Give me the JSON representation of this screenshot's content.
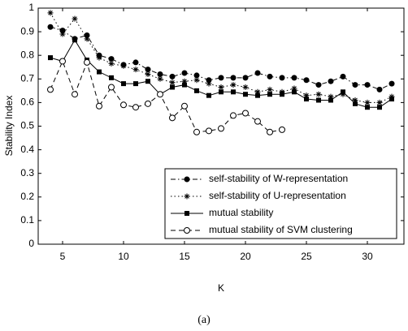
{
  "chart_data": {
    "type": "line",
    "x_label": "K",
    "y_label": "Stability Index",
    "caption": "(a)",
    "x": [
      4,
      5,
      6,
      7,
      8,
      9,
      10,
      11,
      12,
      13,
      14,
      15,
      16,
      17,
      18,
      19,
      20,
      21,
      22,
      23,
      24,
      25,
      26,
      27,
      28,
      29,
      30,
      31,
      32
    ],
    "series": [
      {
        "name": "self-stability of W-representation",
        "color": "#000000",
        "line_style": "dashdot",
        "marker": "filled-circle",
        "values": [
          0.92,
          0.905,
          0.87,
          0.885,
          0.8,
          0.785,
          0.76,
          0.77,
          0.74,
          0.72,
          0.71,
          0.725,
          0.715,
          0.695,
          0.705,
          0.705,
          0.705,
          0.725,
          0.71,
          0.705,
          0.705,
          0.695,
          0.675,
          0.69,
          0.71,
          0.675,
          0.675,
          0.655,
          0.68
        ]
      },
      {
        "name": "self-stability of U-representation",
        "color": "#000000",
        "line_style": "dotted",
        "marker": "star",
        "values": [
          0.98,
          0.89,
          0.955,
          0.87,
          0.79,
          0.765,
          0.755,
          0.74,
          0.72,
          0.7,
          0.685,
          0.69,
          0.695,
          0.68,
          0.665,
          0.675,
          0.665,
          0.645,
          0.655,
          0.645,
          0.66,
          0.63,
          0.635,
          0.625,
          0.635,
          0.61,
          0.6,
          0.6,
          0.625
        ]
      },
      {
        "name": "mutual stability",
        "color": "#000000",
        "line_style": "solid",
        "marker": "filled-square",
        "values": [
          0.79,
          0.775,
          0.865,
          0.78,
          0.73,
          0.705,
          0.68,
          0.68,
          0.69,
          0.635,
          0.665,
          0.675,
          0.65,
          0.63,
          0.645,
          0.645,
          0.635,
          0.63,
          0.635,
          0.635,
          0.645,
          0.615,
          0.61,
          0.61,
          0.645,
          0.595,
          0.58,
          0.58,
          0.615
        ]
      },
      {
        "name": "mutual stability of SVM clustering",
        "color": "#000000",
        "line_style": "dashed",
        "marker": "open-circle",
        "values": [
          0.655,
          0.775,
          0.635,
          0.77,
          0.585,
          0.665,
          0.59,
          0.58,
          0.595,
          0.635,
          0.535,
          0.585,
          0.475,
          0.48,
          0.49,
          0.545,
          0.555,
          0.52,
          0.475,
          0.485,
          null,
          null,
          null,
          null,
          null,
          null,
          null,
          null,
          null
        ]
      }
    ],
    "xlim": [
      3,
      33
    ],
    "xticks": [
      5,
      10,
      15,
      20,
      25,
      30
    ],
    "ylim": [
      0,
      1
    ],
    "yticks": [
      0,
      0.1,
      0.2,
      0.3,
      0.4,
      0.5,
      0.6,
      0.7,
      0.8,
      0.9,
      1
    ],
    "grid": false,
    "legend_position": "upper-right"
  }
}
